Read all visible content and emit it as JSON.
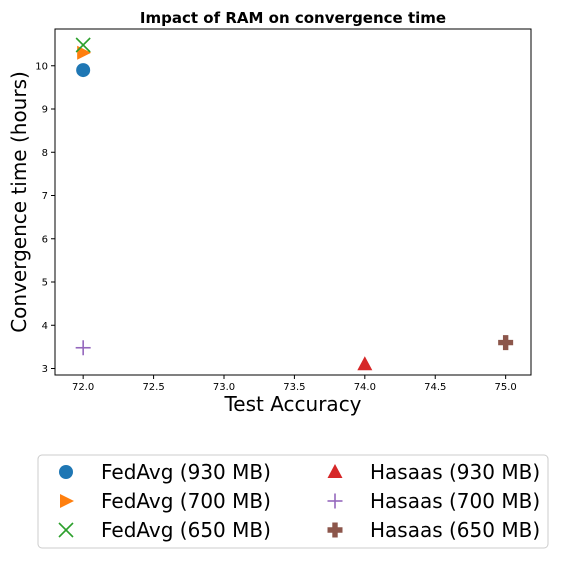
{
  "chart_data": {
    "type": "scatter",
    "title": "Impact of RAM on convergence time",
    "xlabel": "Test Accuracy",
    "ylabel": "Convergence time (hours)",
    "xlim": [
      71.8,
      75.18
    ],
    "ylim": [
      2.85,
      10.85
    ],
    "xticks": [
      "72.0",
      "72.5",
      "73.0",
      "73.5",
      "74.0",
      "74.5",
      "75.0"
    ],
    "yticks": [
      "3",
      "4",
      "5",
      "6",
      "7",
      "8",
      "9",
      "10"
    ],
    "grid": false,
    "legend_position": "bottom",
    "series": [
      {
        "name": "FedAvg (930 MB)",
        "marker": "circle",
        "color": "#1f77b4",
        "x": [
          72.0
        ],
        "y": [
          9.9
        ]
      },
      {
        "name": "FedAvg (700 MB)",
        "marker": "triangle-right",
        "color": "#ff7f0e",
        "x": [
          72.0
        ],
        "y": [
          10.3
        ]
      },
      {
        "name": "FedAvg (650 MB)",
        "marker": "x",
        "color": "#2ca02c",
        "x": [
          72.0
        ],
        "y": [
          10.48
        ]
      },
      {
        "name": "Hasaas (930 MB)",
        "marker": "triangle-up",
        "color": "#d62728",
        "x": [
          74.0
        ],
        "y": [
          3.1
        ]
      },
      {
        "name": "Hasaas (700 MB)",
        "marker": "plus",
        "color": "#9467bd",
        "x": [
          72.0
        ],
        "y": [
          3.48
        ]
      },
      {
        "name": "Hasaas (650 MB)",
        "marker": "plus-filled",
        "color": "#8c564b",
        "x": [
          75.0
        ],
        "y": [
          3.6
        ]
      }
    ]
  }
}
